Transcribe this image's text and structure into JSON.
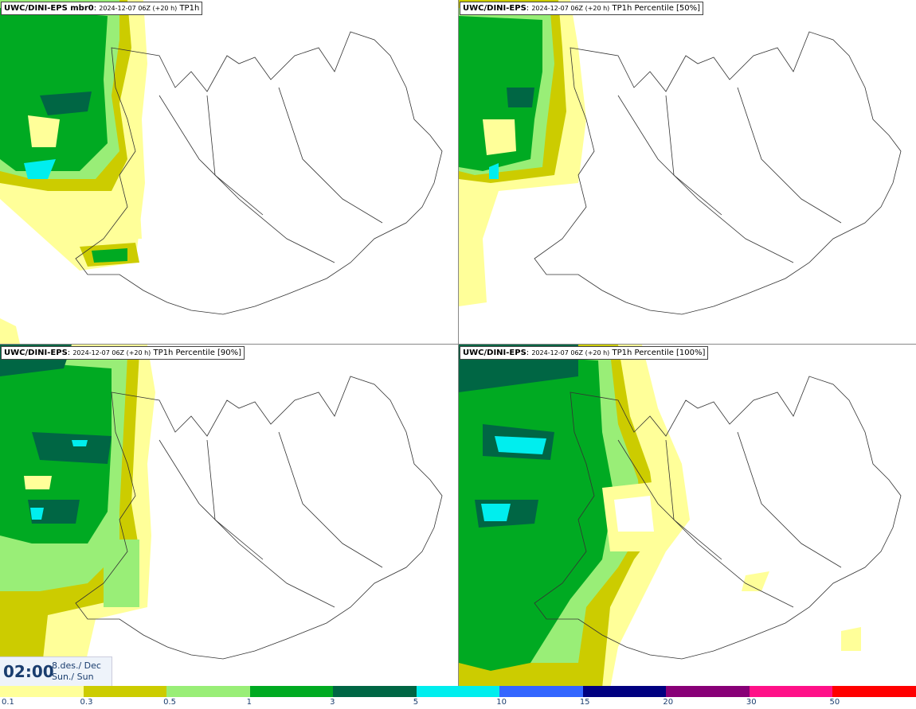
{
  "panels": [
    {
      "model": "UWC/DINI-EPS mbr0",
      "run": "2024-12-07 06Z (+20 h)",
      "field": "TP1h"
    },
    {
      "model": "UWC/DINI-EPS",
      "run": "2024-12-07 06Z (+20 h)",
      "field": "TP1h Percentile [50%]"
    },
    {
      "model": "UWC/DINI-EPS",
      "run": "2024-12-07 06Z (+20 h)",
      "field": "TP1h Percentile [90%]"
    },
    {
      "model": "UWC/DINI-EPS",
      "run": "2024-12-07 06Z (+20 h)",
      "field": "TP1h Percentile [100%]"
    }
  ],
  "valid_time": {
    "time": "02:00",
    "date_line1": "8.des./ Dec",
    "date_line2": "Sun./ Sun"
  },
  "legend": {
    "colors": [
      "#ffff99",
      "#cccc00",
      "#99ee77",
      "#00aa22",
      "#006644",
      "#00eeee",
      "#3366ff",
      "#000080",
      "#880077",
      "#ff1188",
      "#ff0000"
    ],
    "ticks": [
      "0.1",
      "0.3",
      "0.5",
      "1",
      "3",
      "5",
      "10",
      "15",
      "20",
      "30",
      "50"
    ]
  }
}
